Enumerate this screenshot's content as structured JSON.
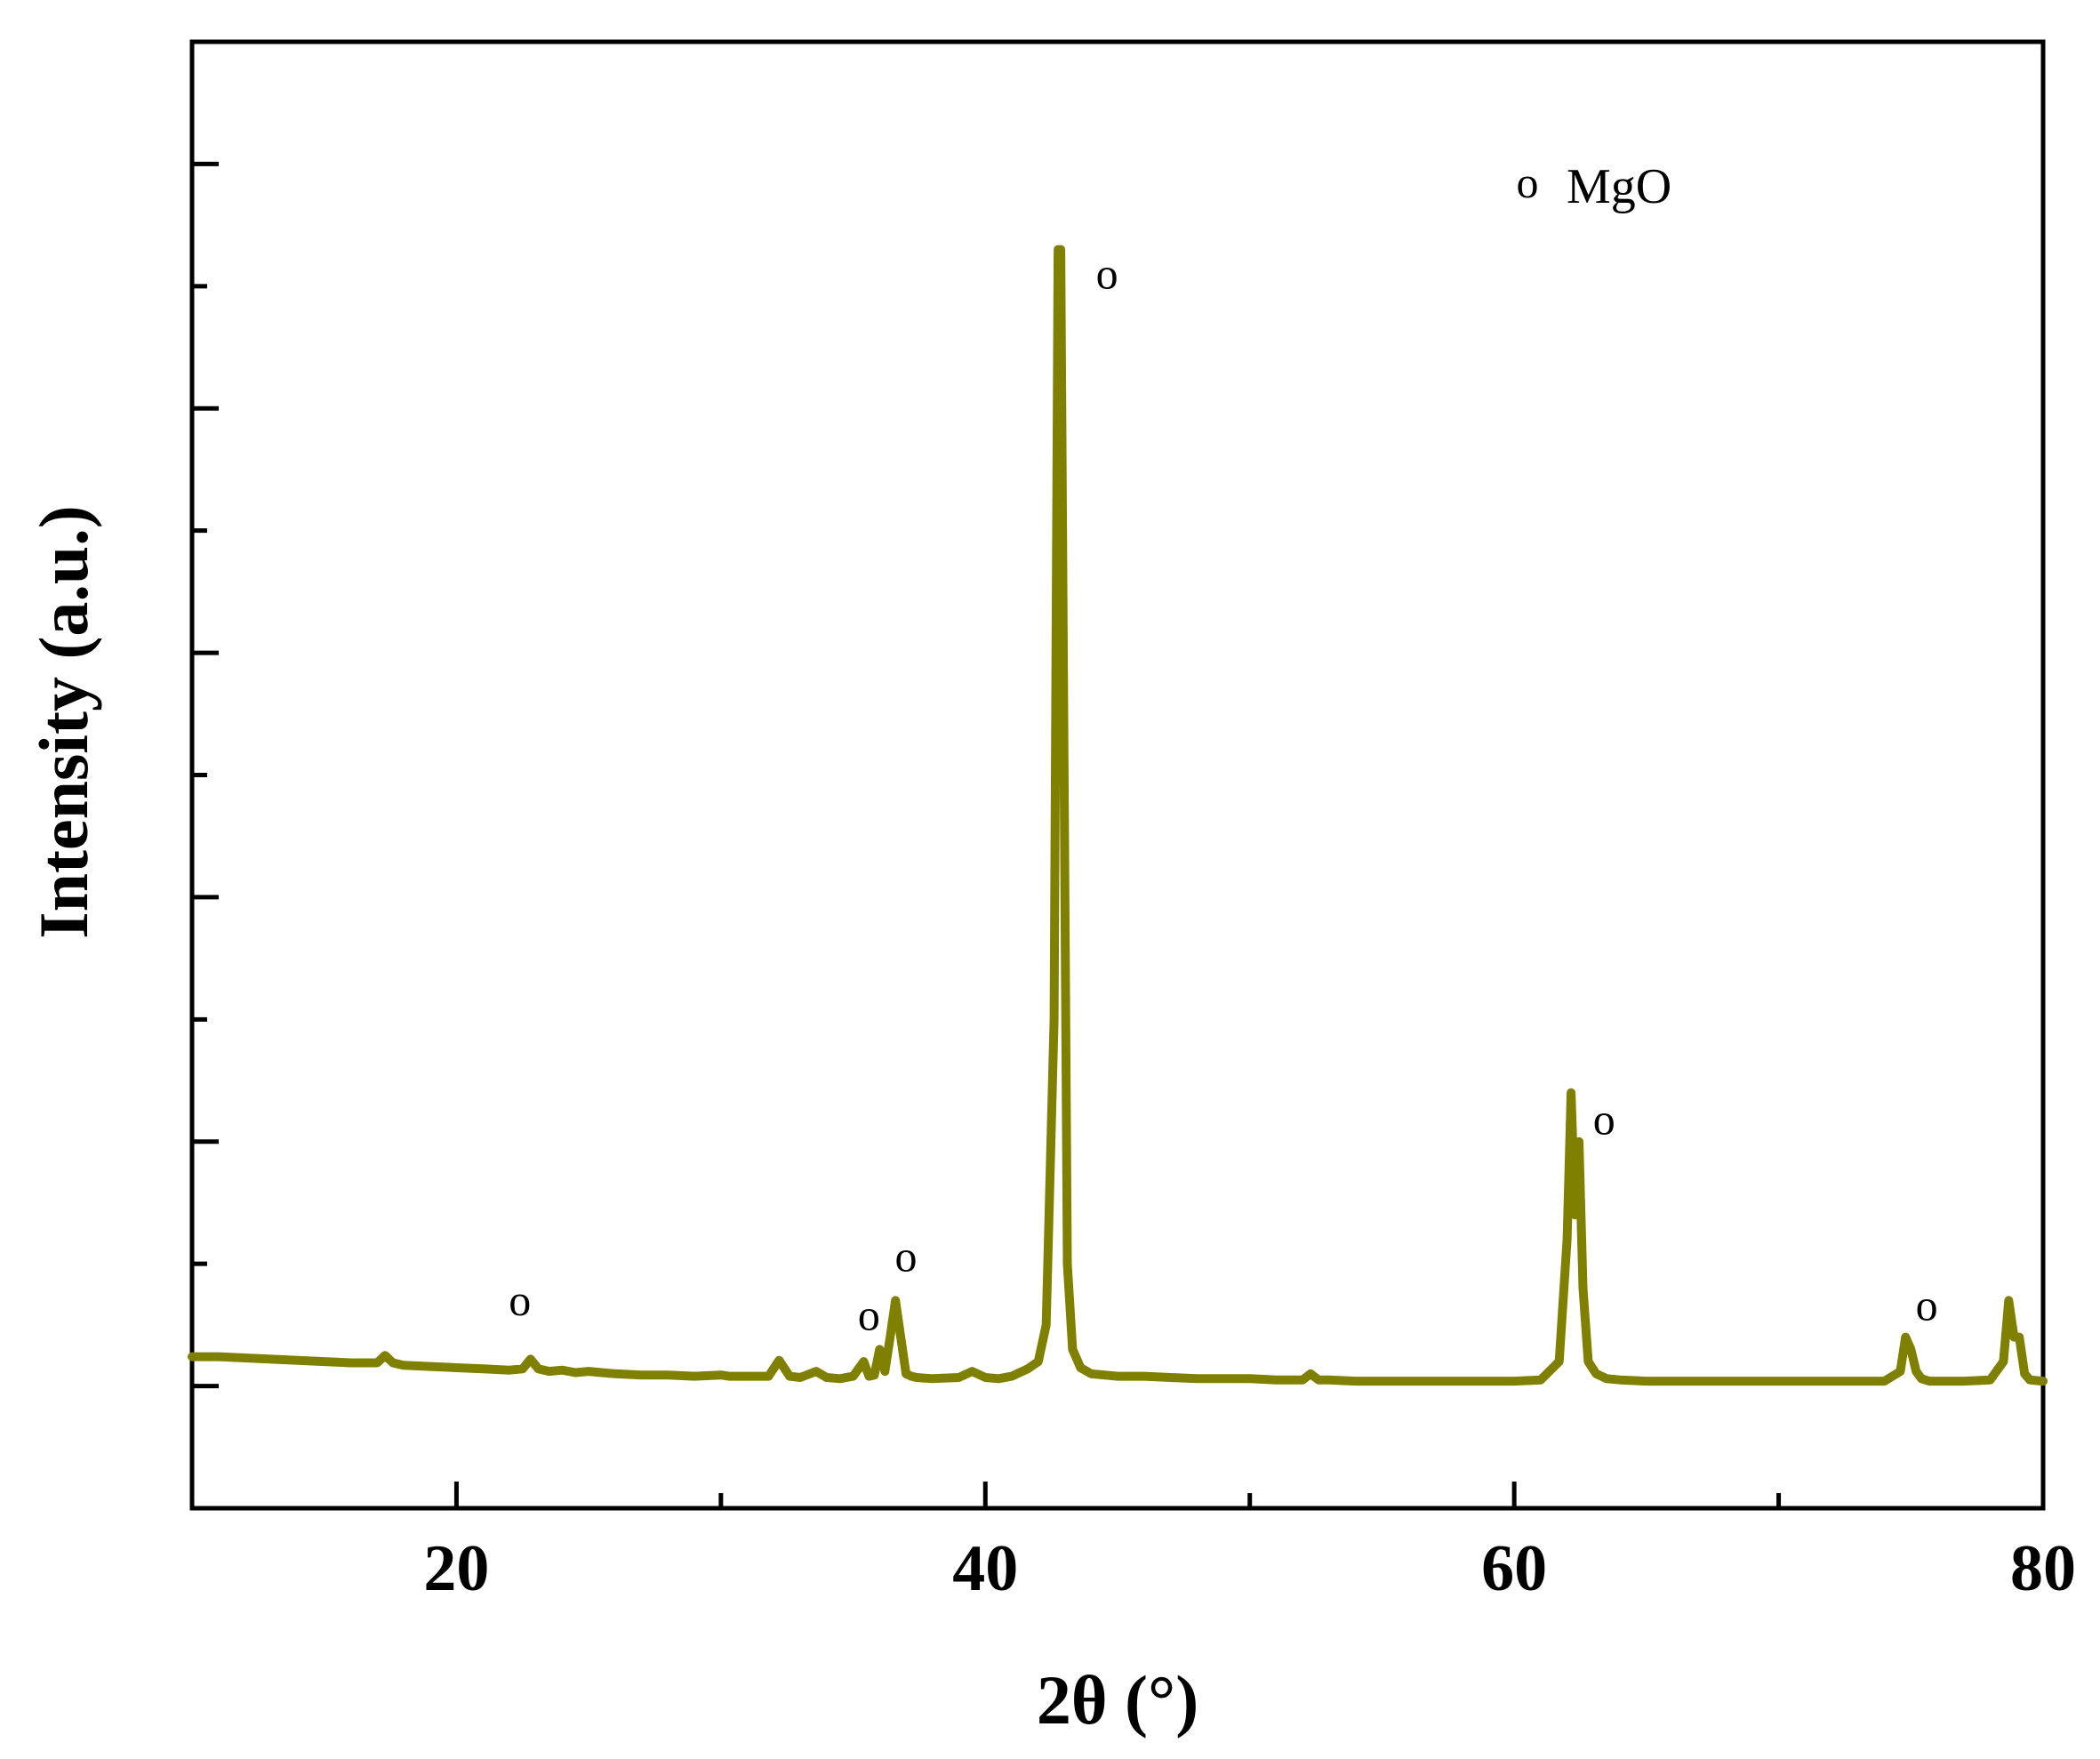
{
  "chart_data": {
    "type": "line",
    "title": "",
    "xlabel": "2θ (°)",
    "ylabel": "Intensity (a.u.)",
    "xlim": [
      10,
      80
    ],
    "ylim": [
      -0.1,
      1.1
    ],
    "xticks": [
      20,
      40,
      60,
      80
    ],
    "xticks_minor": [
      30,
      50,
      70
    ],
    "yticks_unlabeled": [
      0,
      0.1,
      0.2,
      0.3,
      0.4,
      0.5,
      0.6,
      0.7,
      0.8,
      0.9,
      1.0
    ],
    "grid": false,
    "line_color": "#808000",
    "legend": {
      "symbol": "o",
      "label": "MgO",
      "placement": "top-right"
    },
    "series": [
      {
        "name": "",
        "x": [
          10,
          11,
          12,
          13,
          14,
          15,
          16,
          17,
          17.3,
          17.6,
          18,
          19,
          20,
          21,
          22,
          22.5,
          22.8,
          23.1,
          23.5,
          24,
          24.5,
          25,
          25.5,
          26,
          27,
          28,
          29,
          30,
          30.3,
          31,
          31.8,
          32.2,
          32.6,
          33,
          33.6,
          34,
          34.5,
          35,
          35.4,
          35.6,
          35.8,
          36,
          36.2,
          36.4,
          36.6,
          36.8,
          37,
          37.2,
          37.4,
          38,
          39,
          39.5,
          40,
          40.5,
          41,
          41.6,
          42,
          42.3,
          42.6,
          42.75,
          42.85,
          42.95,
          43.1,
          43.3,
          43.6,
          44,
          45,
          46,
          47,
          48,
          49,
          50,
          51,
          52,
          52.3,
          52.6,
          53,
          54,
          55,
          56,
          57,
          58,
          59,
          60,
          61,
          61.7,
          62,
          62.15,
          62.3,
          62.45,
          62.6,
          62.8,
          63.1,
          63.5,
          64,
          65,
          66,
          67,
          68,
          69,
          70,
          71,
          72,
          73,
          74,
          74.6,
          74.8,
          75,
          75.2,
          75.4,
          75.7,
          76,
          77,
          78,
          78.5,
          78.7,
          78.9,
          79.1,
          79.3,
          79.5,
          80
        ],
        "y": [
          0.024,
          0.024,
          0.023,
          0.022,
          0.021,
          0.02,
          0.019,
          0.019,
          0.025,
          0.019,
          0.017,
          0.016,
          0.015,
          0.014,
          0.013,
          0.014,
          0.022,
          0.014,
          0.012,
          0.013,
          0.011,
          0.012,
          0.011,
          0.01,
          0.009,
          0.009,
          0.008,
          0.009,
          0.008,
          0.008,
          0.008,
          0.021,
          0.008,
          0.007,
          0.012,
          0.007,
          0.006,
          0.008,
          0.02,
          0.008,
          0.009,
          0.03,
          0.012,
          0.04,
          0.07,
          0.04,
          0.01,
          0.008,
          0.007,
          0.006,
          0.007,
          0.012,
          0.007,
          0.006,
          0.008,
          0.014,
          0.02,
          0.05,
          0.3,
          0.93,
          0.93,
          0.6,
          0.1,
          0.03,
          0.015,
          0.01,
          0.008,
          0.008,
          0.007,
          0.006,
          0.006,
          0.006,
          0.005,
          0.005,
          0.01,
          0.005,
          0.005,
          0.004,
          0.004,
          0.004,
          0.004,
          0.004,
          0.004,
          0.004,
          0.005,
          0.02,
          0.12,
          0.24,
          0.14,
          0.2,
          0.08,
          0.02,
          0.01,
          0.006,
          0.005,
          0.004,
          0.004,
          0.004,
          0.004,
          0.004,
          0.004,
          0.004,
          0.004,
          0.004,
          0.004,
          0.012,
          0.04,
          0.03,
          0.012,
          0.006,
          0.004,
          0.004,
          0.004,
          0.005,
          0.02,
          0.07,
          0.04,
          0.04,
          0.01,
          0.005,
          0.004
        ]
      }
    ],
    "peak_markers": [
      {
        "x": 22.4,
        "y": 0.058,
        "label": "o"
      },
      {
        "x": 35.6,
        "y": 0.046,
        "label": "o"
      },
      {
        "x": 37.0,
        "y": 0.094,
        "label": "o"
      },
      {
        "x": 44.6,
        "y": 0.898,
        "label": "o"
      },
      {
        "x": 63.4,
        "y": 0.206,
        "label": "o"
      },
      {
        "x": 75.6,
        "y": 0.054,
        "label": "o"
      }
    ]
  }
}
